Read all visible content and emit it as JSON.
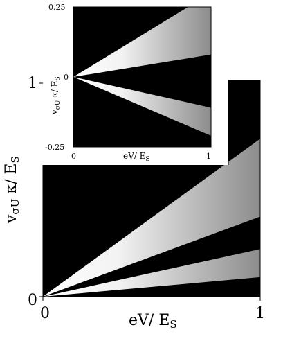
{
  "chart_data": [
    {
      "type": "heatmap",
      "title": "",
      "xlabel": "eV/ E",
      "xlabel_sub": "S",
      "ylabel": "v",
      "ylabel_sub": "σU",
      "ylabel_rest": " κ/ E",
      "ylabel_sub2": "S",
      "xlim": [
        0,
        1
      ],
      "ylim": [
        0,
        1
      ],
      "x_ticks": [
        "0",
        "1"
      ],
      "y_ticks": [
        "0",
        "1"
      ],
      "background_color": "#000000",
      "band_color": "#ffffff",
      "bright_bands": [
        {
          "name": "",
          "from": [
            0,
            0
          ],
          "to_lower": [
            1,
            0.37
          ],
          "to_upper": [
            1,
            0.73
          ]
        },
        {
          "name": "",
          "from": [
            0,
            0
          ],
          "to_lower": [
            1,
            0.09
          ],
          "to_upper": [
            1,
            0.22
          ]
        }
      ]
    },
    {
      "type": "heatmap",
      "title": "",
      "xlabel": "eV/ E",
      "xlabel_sub": "S",
      "ylabel": "v",
      "ylabel_sub": "σU",
      "ylabel_rest": " κ/ E",
      "ylabel_sub2": "S",
      "xlim": [
        0,
        1
      ],
      "ylim": [
        -0.25,
        0.25
      ],
      "x_ticks": [
        "0",
        "1"
      ],
      "y_ticks": [
        "0.25",
        "0",
        "-0.25"
      ],
      "background_color": "#000000",
      "band_color": "#ffffff",
      "bright_bands": [
        {
          "name": "",
          "from": [
            0,
            0
          ],
          "to_lower": [
            1,
            0.08
          ],
          "to_upper": [
            1,
            0.3
          ]
        },
        {
          "name": "",
          "from": [
            0,
            0
          ],
          "to_lower": [
            1,
            -0.21
          ],
          "to_upper": [
            1,
            -0.11
          ]
        }
      ]
    }
  ]
}
